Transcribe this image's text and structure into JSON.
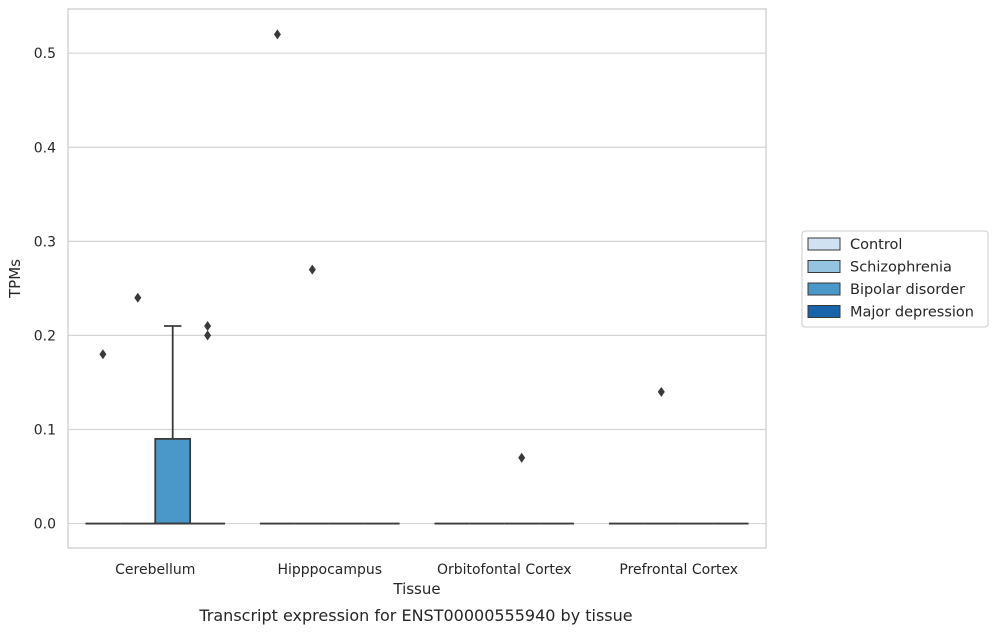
{
  "caption": "Transcript expression for ENST00000555940 by tissue",
  "chart_data": {
    "type": "box",
    "xlabel": "Tissue",
    "ylabel": "TPMs",
    "ylim": [
      -0.026,
      0.547
    ],
    "yticks": [
      0.0,
      0.1,
      0.2,
      0.3,
      0.4,
      0.5
    ],
    "ytick_labels": [
      "0.0",
      "0.1",
      "0.2",
      "0.3",
      "0.4",
      "0.5"
    ],
    "grid": "horizontal",
    "legend_position": "right",
    "categories": [
      "Cerebellum",
      "Hipppocampus",
      "Orbitofontal Cortex",
      "Prefrontal Cortex"
    ],
    "series": [
      {
        "name": "Control",
        "color": "#d0e1f2"
      },
      {
        "name": "Schizophrenia",
        "color": "#94c4df"
      },
      {
        "name": "Bipolar disorder",
        "color": "#4a98c9"
      },
      {
        "name": "Major depression",
        "color": "#1764ab"
      }
    ],
    "boxes": [
      {
        "category": "Cerebellum",
        "series": "Control",
        "q1": 0,
        "median": 0,
        "q3": 0,
        "whisker_low": 0,
        "whisker_high": 0,
        "outliers": [
          0.18
        ]
      },
      {
        "category": "Cerebellum",
        "series": "Schizophrenia",
        "q1": 0,
        "median": 0,
        "q3": 0,
        "whisker_low": 0,
        "whisker_high": 0,
        "outliers": [
          0.24
        ]
      },
      {
        "category": "Cerebellum",
        "series": "Bipolar disorder",
        "q1": 0,
        "median": 0,
        "q3": 0.09,
        "whisker_low": 0,
        "whisker_high": 0.21,
        "outliers": []
      },
      {
        "category": "Cerebellum",
        "series": "Major depression",
        "q1": 0,
        "median": 0,
        "q3": 0,
        "whisker_low": 0,
        "whisker_high": 0,
        "outliers": [
          0.21,
          0.2
        ]
      },
      {
        "category": "Hipppocampus",
        "series": "Control",
        "q1": 0,
        "median": 0,
        "q3": 0,
        "whisker_low": 0,
        "whisker_high": 0,
        "outliers": [
          0.52
        ]
      },
      {
        "category": "Hipppocampus",
        "series": "Schizophrenia",
        "q1": 0,
        "median": 0,
        "q3": 0,
        "whisker_low": 0,
        "whisker_high": 0,
        "outliers": [
          0.27
        ]
      },
      {
        "category": "Hipppocampus",
        "series": "Bipolar disorder",
        "q1": 0,
        "median": 0,
        "q3": 0,
        "whisker_low": 0,
        "whisker_high": 0,
        "outliers": []
      },
      {
        "category": "Hipppocampus",
        "series": "Major depression",
        "q1": 0,
        "median": 0,
        "q3": 0,
        "whisker_low": 0,
        "whisker_high": 0,
        "outliers": []
      },
      {
        "category": "Orbitofontal Cortex",
        "series": "Control",
        "q1": 0,
        "median": 0,
        "q3": 0,
        "whisker_low": 0,
        "whisker_high": 0,
        "outliers": []
      },
      {
        "category": "Orbitofontal Cortex",
        "series": "Schizophrenia",
        "q1": 0,
        "median": 0,
        "q3": 0,
        "whisker_low": 0,
        "whisker_high": 0,
        "outliers": []
      },
      {
        "category": "Orbitofontal Cortex",
        "series": "Bipolar disorder",
        "q1": 0,
        "median": 0,
        "q3": 0,
        "whisker_low": 0,
        "whisker_high": 0,
        "outliers": [
          0.07
        ]
      },
      {
        "category": "Orbitofontal Cortex",
        "series": "Major depression",
        "q1": 0,
        "median": 0,
        "q3": 0,
        "whisker_low": 0,
        "whisker_high": 0,
        "outliers": []
      },
      {
        "category": "Prefrontal Cortex",
        "series": "Control",
        "q1": 0,
        "median": 0,
        "q3": 0,
        "whisker_low": 0,
        "whisker_high": 0,
        "outliers": []
      },
      {
        "category": "Prefrontal Cortex",
        "series": "Schizophrenia",
        "q1": 0,
        "median": 0,
        "q3": 0,
        "whisker_low": 0,
        "whisker_high": 0,
        "outliers": [
          0.14
        ]
      },
      {
        "category": "Prefrontal Cortex",
        "series": "Bipolar disorder",
        "q1": 0,
        "median": 0,
        "q3": 0,
        "whisker_low": 0,
        "whisker_high": 0,
        "outliers": []
      },
      {
        "category": "Prefrontal Cortex",
        "series": "Major depression",
        "q1": 0,
        "median": 0,
        "q3": 0,
        "whisker_low": 0,
        "whisker_high": 0,
        "outliers": []
      }
    ]
  }
}
